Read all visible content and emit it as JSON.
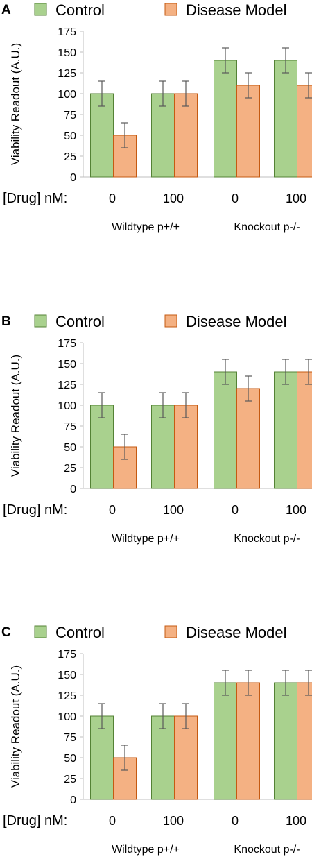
{
  "colors": {
    "control_fill": "#a9d18e",
    "control_stroke": "#548235",
    "disease_fill": "#f4b183",
    "disease_stroke": "#c55a11",
    "axis": "#bfbfbf",
    "error": "#595959"
  },
  "chart_data": [
    {
      "panel": "A",
      "type": "bar",
      "ylabel": "Viability Readout (A.U.)",
      "ylim": [
        0,
        175
      ],
      "yticks": [
        0,
        25,
        50,
        75,
        100,
        125,
        150,
        175
      ],
      "drug_label": "[Drug] nM:",
      "categories": [
        "0",
        "100",
        "0",
        "100"
      ],
      "groups": [
        "Wildtype p+/+",
        "Knockout p-/-"
      ],
      "legend": "top",
      "series": [
        {
          "name": "Control",
          "values": [
            100,
            100,
            140,
            140
          ],
          "errors": [
            15,
            15,
            15,
            15
          ]
        },
        {
          "name": "Disease Model",
          "values": [
            50,
            100,
            110,
            110
          ],
          "errors": [
            15,
            15,
            15,
            15
          ]
        }
      ]
    },
    {
      "panel": "B",
      "type": "bar",
      "ylabel": "Viability Readout (A.U.)",
      "ylim": [
        0,
        175
      ],
      "yticks": [
        0,
        25,
        50,
        75,
        100,
        125,
        150,
        175
      ],
      "drug_label": "[Drug] nM:",
      "categories": [
        "0",
        "100",
        "0",
        "100"
      ],
      "groups": [
        "Wildtype p+/+",
        "Knockout p-/-"
      ],
      "legend": "top",
      "series": [
        {
          "name": "Control",
          "values": [
            100,
            100,
            140,
            140
          ],
          "errors": [
            15,
            15,
            15,
            15
          ]
        },
        {
          "name": "Disease Model",
          "values": [
            50,
            100,
            120,
            140
          ],
          "errors": [
            15,
            15,
            15,
            15
          ]
        }
      ]
    },
    {
      "panel": "C",
      "type": "bar",
      "ylabel": "Viability Readout (A.U.)",
      "ylim": [
        0,
        175
      ],
      "yticks": [
        0,
        25,
        50,
        75,
        100,
        125,
        150,
        175
      ],
      "drug_label": "[Drug] nM:",
      "categories": [
        "0",
        "100",
        "0",
        "100"
      ],
      "groups": [
        "Wildtype p+/+",
        "Knockout p-/-"
      ],
      "legend": "top",
      "series": [
        {
          "name": "Control",
          "values": [
            100,
            100,
            140,
            140
          ],
          "errors": [
            15,
            15,
            15,
            15
          ]
        },
        {
          "name": "Disease Model",
          "values": [
            50,
            100,
            140,
            140
          ],
          "errors": [
            15,
            15,
            15,
            15
          ]
        }
      ]
    }
  ]
}
